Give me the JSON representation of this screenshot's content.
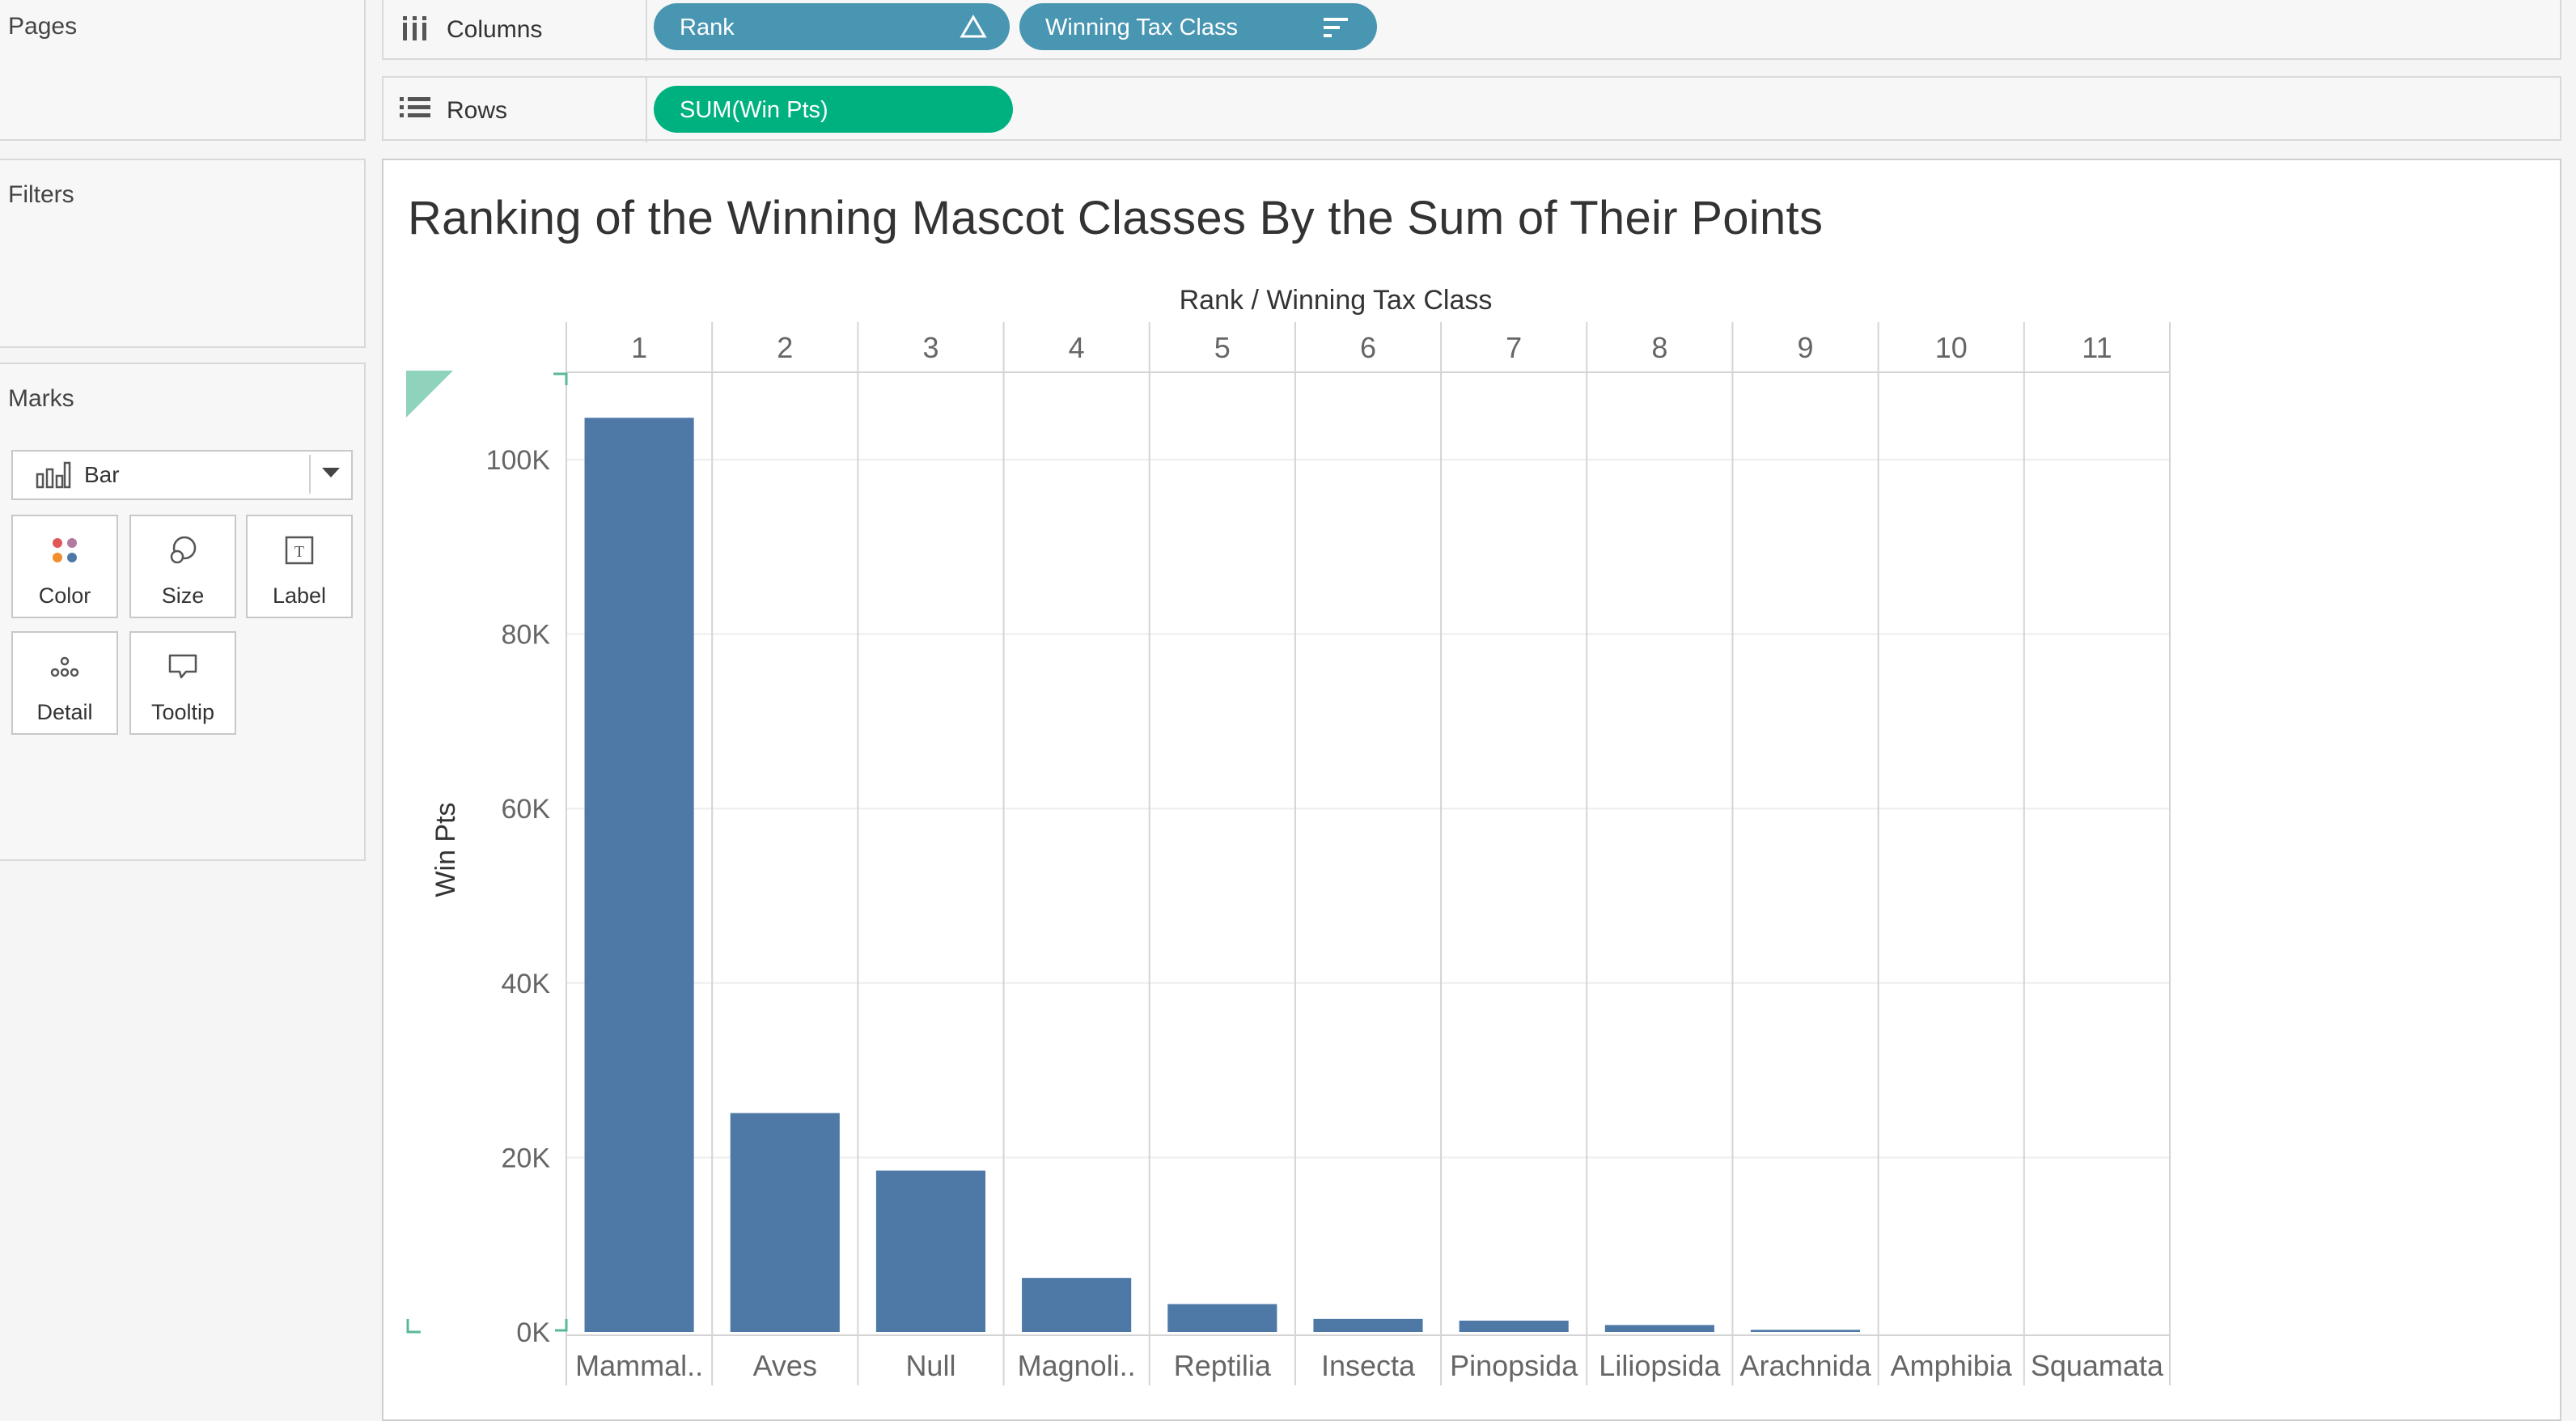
{
  "left_panel": {
    "pages_title": "Pages",
    "filters_title": "Filters",
    "marks_title": "Marks",
    "mark_type": "Bar",
    "mark_buttons": [
      {
        "label": "Color",
        "icon": "color-icon"
      },
      {
        "label": "Size",
        "icon": "size-icon"
      },
      {
        "label": "Label",
        "icon": "label-icon"
      },
      {
        "label": "Detail",
        "icon": "detail-icon"
      },
      {
        "label": "Tooltip",
        "icon": "tooltip-icon"
      }
    ]
  },
  "shelves": {
    "columns_label": "Columns",
    "rows_label": "Rows",
    "columns_pills": [
      {
        "label": "Rank",
        "color": "#4996b2"
      },
      {
        "label": "Winning Tax Class",
        "color": "#4996b2"
      }
    ],
    "rows_pills": [
      {
        "label": "SUM(Win Pts)",
        "color": "#00b180"
      }
    ]
  },
  "colors": {
    "bar": "#4e79a7",
    "dimension_pill": "#4996b2",
    "measure_pill": "#00b180"
  },
  "chart_data": {
    "type": "bar",
    "title": "Ranking of the Winning Mascot Classes By the Sum of Their Points",
    "header_title": "Rank  /  Winning Tax Class",
    "ylabel": "Win Pts",
    "ylim": [
      0,
      110000
    ],
    "yticks": [
      0,
      20000,
      40000,
      60000,
      80000,
      100000
    ],
    "ytick_labels": [
      "0K",
      "20K",
      "40K",
      "60K",
      "80K",
      "100K"
    ],
    "ranks": [
      "1",
      "2",
      "3",
      "4",
      "5",
      "6",
      "7",
      "8",
      "9",
      "10",
      "11"
    ],
    "categories": [
      "Mammal..",
      "Aves",
      "Null",
      "Magnoli..",
      "Reptilia",
      "Insecta",
      "Pinopsida",
      "Liliopsida",
      "Arachnida",
      "Amphibia",
      "Squamata"
    ],
    "values": [
      104800,
      25100,
      18500,
      6200,
      3200,
      1500,
      1300,
      800,
      250,
      0,
      0
    ],
    "grid": true
  }
}
